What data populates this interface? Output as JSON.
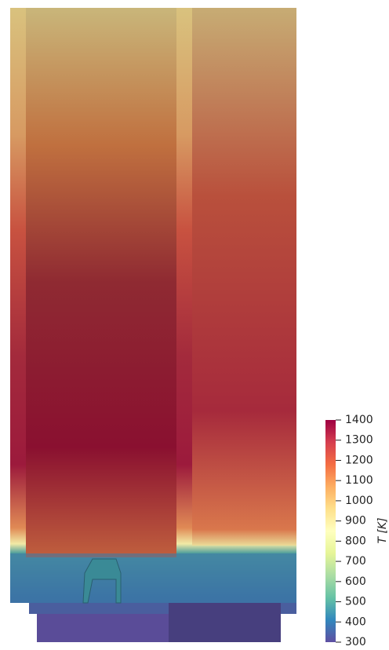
{
  "chart_data": {
    "type": "colorbar",
    "label": "T [K]",
    "lim": [
      300,
      1400
    ],
    "ticks": [
      300,
      400,
      500,
      600,
      700,
      800,
      900,
      1000,
      1100,
      1200,
      1300,
      1400
    ],
    "colormap": [
      "#5e4fa2",
      "#3288bd",
      "#66c2a5",
      "#abdda4",
      "#e6f598",
      "#ffffbf",
      "#fee08b",
      "#fdae61",
      "#f46d43",
      "#d53e4f",
      "#9e0142"
    ]
  }
}
